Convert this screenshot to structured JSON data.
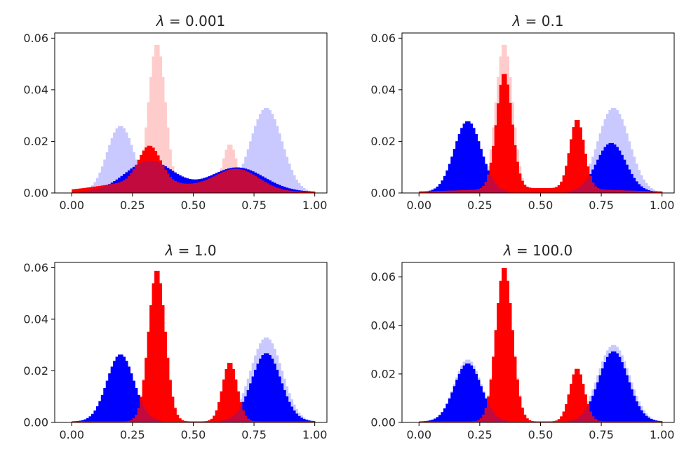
{
  "chart_data": [
    {
      "type": "histogram",
      "title": "λ = 0.001",
      "title_symbol": "λ",
      "title_value": "0.001",
      "xlim": [
        -0.07,
        1.05
      ],
      "ylim": [
        0,
        0.062
      ],
      "xticks": [
        0.0,
        0.25,
        0.5,
        0.75,
        1.0
      ],
      "xtick_labels": [
        "0.00",
        "0.25",
        "0.50",
        "0.75",
        "1.00"
      ],
      "yticks": [
        0.0,
        0.02,
        0.04,
        0.06
      ],
      "ytick_labels": [
        "0.00",
        "0.02",
        "0.04",
        "0.06"
      ],
      "bin_width": 0.01,
      "target_blue": [
        {
          "mu": 0.2,
          "sigma": 0.055,
          "peak": 0.026
        },
        {
          "mu": 0.8,
          "sigma": 0.065,
          "peak": 0.033
        }
      ],
      "target_red": [
        {
          "mu": 0.35,
          "sigma": 0.035,
          "peak": 0.058
        },
        {
          "mu": 0.65,
          "sigma": 0.03,
          "peak": 0.019
        }
      ],
      "blue": [
        {
          "mu": 0.32,
          "sigma": 0.1,
          "peak": 0.012
        },
        {
          "mu": 0.68,
          "sigma": 0.11,
          "peak": 0.0095
        }
      ],
      "red": [
        {
          "mu": 0.32,
          "sigma": 0.045,
          "peak": 0.014
        },
        {
          "mu": 0.68,
          "sigma": 0.09,
          "peak": 0.0085
        }
      ],
      "red_base": [
        {
          "mu": 0.3,
          "sigma": 0.18,
          "peak": 0.004
        }
      ]
    },
    {
      "type": "histogram",
      "title": "λ = 0.1",
      "title_symbol": "λ",
      "title_value": "0.1",
      "xlim": [
        -0.07,
        1.05
      ],
      "ylim": [
        0,
        0.062
      ],
      "xticks": [
        0.0,
        0.25,
        0.5,
        0.75,
        1.0
      ],
      "xtick_labels": [
        "0.00",
        "0.25",
        "0.50",
        "0.75",
        "1.00"
      ],
      "yticks": [
        0.0,
        0.02,
        0.04,
        0.06
      ],
      "ytick_labels": [
        "0.00",
        "0.02",
        "0.04",
        "0.06"
      ],
      "bin_width": 0.01,
      "target_blue": [
        {
          "mu": 0.2,
          "sigma": 0.055,
          "peak": 0.026
        },
        {
          "mu": 0.8,
          "sigma": 0.065,
          "peak": 0.033
        }
      ],
      "target_red": [
        {
          "mu": 0.35,
          "sigma": 0.035,
          "peak": 0.058
        },
        {
          "mu": 0.65,
          "sigma": 0.03,
          "peak": 0.019
        }
      ],
      "blue": [
        {
          "mu": 0.2,
          "sigma": 0.055,
          "peak": 0.0275
        },
        {
          "mu": 0.79,
          "sigma": 0.06,
          "peak": 0.019
        }
      ],
      "red": [
        {
          "mu": 0.35,
          "sigma": 0.032,
          "peak": 0.045
        },
        {
          "mu": 0.65,
          "sigma": 0.03,
          "peak": 0.027
        }
      ],
      "red_base": [
        {
          "mu": 0.5,
          "sigma": 0.25,
          "peak": 0.0015
        }
      ]
    },
    {
      "type": "histogram",
      "title": "λ = 1.0",
      "title_symbol": "λ",
      "title_value": "1.0",
      "xlim": [
        -0.07,
        1.05
      ],
      "ylim": [
        0,
        0.062
      ],
      "xticks": [
        0.0,
        0.25,
        0.5,
        0.75,
        1.0
      ],
      "xtick_labels": [
        "0.00",
        "0.25",
        "0.50",
        "0.75",
        "1.00"
      ],
      "yticks": [
        0.0,
        0.02,
        0.04,
        0.06
      ],
      "ytick_labels": [
        "0.00",
        "0.02",
        "0.04",
        "0.06"
      ],
      "bin_width": 0.01,
      "target_blue": [
        {
          "mu": 0.2,
          "sigma": 0.055,
          "peak": 0.026
        },
        {
          "mu": 0.8,
          "sigma": 0.065,
          "peak": 0.033
        }
      ],
      "target_red": [
        {
          "mu": 0.35,
          "sigma": 0.035,
          "peak": 0.058
        },
        {
          "mu": 0.65,
          "sigma": 0.03,
          "peak": 0.019
        }
      ],
      "blue": [
        {
          "mu": 0.2,
          "sigma": 0.055,
          "peak": 0.026
        },
        {
          "mu": 0.8,
          "sigma": 0.06,
          "peak": 0.0265
        }
      ],
      "red": [
        {
          "mu": 0.35,
          "sigma": 0.034,
          "peak": 0.059
        },
        {
          "mu": 0.65,
          "sigma": 0.03,
          "peak": 0.023
        }
      ],
      "red_base": []
    },
    {
      "type": "histogram",
      "title": "λ = 100.0",
      "title_symbol": "λ",
      "title_value": "100.0",
      "xlim": [
        -0.07,
        1.05
      ],
      "ylim": [
        0,
        0.066
      ],
      "xticks": [
        0.0,
        0.25,
        0.5,
        0.75,
        1.0
      ],
      "xtick_labels": [
        "0.00",
        "0.25",
        "0.50",
        "0.75",
        "1.00"
      ],
      "yticks": [
        0.0,
        0.02,
        0.04,
        0.06
      ],
      "ytick_labels": [
        "0.00",
        "0.02",
        "0.04",
        "0.06"
      ],
      "bin_width": 0.01,
      "target_blue": [
        {
          "mu": 0.2,
          "sigma": 0.055,
          "peak": 0.026
        },
        {
          "mu": 0.8,
          "sigma": 0.065,
          "peak": 0.032
        }
      ],
      "target_red": [
        {
          "mu": 0.35,
          "sigma": 0.035,
          "peak": 0.063
        },
        {
          "mu": 0.65,
          "sigma": 0.03,
          "peak": 0.021
        }
      ],
      "blue": [
        {
          "mu": 0.2,
          "sigma": 0.055,
          "peak": 0.024
        },
        {
          "mu": 0.8,
          "sigma": 0.06,
          "peak": 0.029
        }
      ],
      "red": [
        {
          "mu": 0.35,
          "sigma": 0.034,
          "peak": 0.064
        },
        {
          "mu": 0.65,
          "sigma": 0.03,
          "peak": 0.022
        }
      ],
      "red_base": []
    }
  ],
  "colors": {
    "blue": "#0000ff",
    "red": "#ff0000",
    "blue_faint": "#c9c9ff",
    "red_faint": "#ffcccc",
    "overlap": "#c20a3e",
    "axis": "#000000",
    "text": "#262626"
  }
}
